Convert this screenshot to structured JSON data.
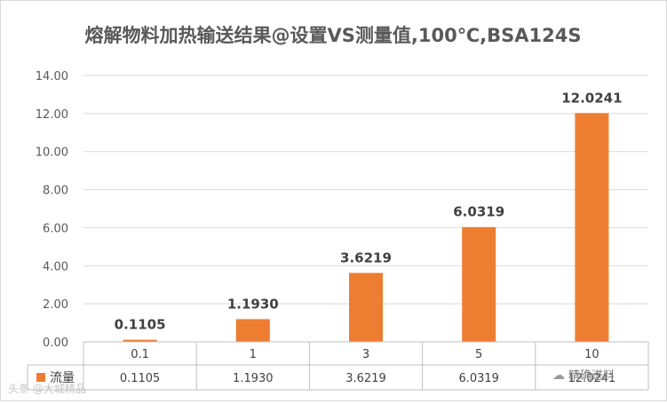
{
  "chart_data": {
    "type": "bar",
    "title": "熔解物料加热输送结果@设置VS测量值,100℃,BSA124S",
    "categories": [
      "0.1",
      "1",
      "3",
      "5",
      "10"
    ],
    "series": [
      {
        "name": "流量",
        "values": [
          0.1105,
          1.193,
          3.6219,
          6.0319,
          12.0241
        ]
      }
    ],
    "data_labels": [
      "0.1105",
      "1.1930",
      "3.6219",
      "6.0319",
      "12.0241"
    ],
    "table_values": [
      "0.1105",
      "1.1930",
      "3.6219",
      "6.0319",
      "12.0241"
    ],
    "y_ticks": [
      "0.00",
      "2.00",
      "4.00",
      "6.00",
      "8.00",
      "10.00",
      "12.00",
      "14.00"
    ],
    "ylim": [
      0,
      14
    ],
    "grid": true,
    "legend": "data-table",
    "bar_color": "#ed7d31",
    "grid_color": "#d9d9d9"
  },
  "watermarks": {
    "left": "头条 @大城精品",
    "right": "精确进料"
  }
}
